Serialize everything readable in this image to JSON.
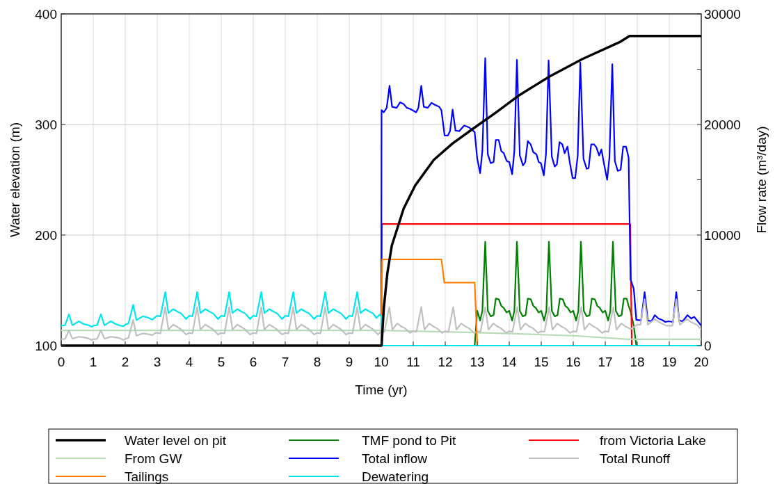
{
  "chart_data": {
    "type": "line",
    "xlabel": "Time (yr)",
    "ylabel": "Water elevation (m)",
    "y2label": "Flow rate (m³/day)",
    "xlim": [
      0,
      20
    ],
    "xticks": [
      0,
      1,
      2,
      3,
      4,
      5,
      6,
      7,
      8,
      9,
      10,
      11,
      12,
      13,
      14,
      15,
      16,
      17,
      18,
      19,
      20
    ],
    "ylim": [
      100,
      400
    ],
    "yticks": [
      100,
      200,
      300,
      400
    ],
    "y2lim": [
      0,
      30000
    ],
    "y2ticks": [
      0,
      {
        "value": 5000,
        "label": null
      },
      10000,
      {
        "value": 15000,
        "label": null
      },
      20000,
      {
        "value": 25000,
        "label": null
      },
      30000
    ],
    "grid": true,
    "legend": "bottom",
    "series": [
      {
        "name": "Water level on pit",
        "color": "#000000",
        "x": [
          0,
          10.01,
          10.08,
          10.19,
          10.33,
          10.7,
          11.06,
          11.64,
          12.22,
          12.87,
          13.59,
          14.32,
          15.26,
          16.28,
          17.47,
          17.76,
          20
        ],
        "values": [
          100,
          100,
          133.8,
          165.2,
          190.4,
          223.9,
          244.8,
          267.9,
          282.6,
          296.2,
          310.9,
          326.6,
          343.4,
          359.1,
          374.8,
          380,
          380
        ]
      },
      {
        "name": "TMF pond to Pit",
        "color": "#008000",
        "axis": "y2",
        "x": [
          0,
          12.92,
          13.0,
          13.09,
          13.16,
          13.25,
          13.33,
          13.42,
          13.51,
          13.58,
          13.67,
          13.75,
          13.83,
          13.92,
          14.0,
          14.09,
          14.16,
          14.24,
          14.33,
          14.42,
          14.51,
          14.58,
          14.67,
          14.75,
          14.83,
          14.92,
          15.0,
          15.09,
          15.16,
          15.24,
          15.33,
          15.42,
          15.51,
          15.58,
          15.67,
          15.75,
          15.83,
          15.92,
          16.0,
          16.09,
          16.16,
          16.24,
          16.33,
          16.42,
          16.51,
          16.58,
          16.67,
          16.75,
          16.83,
          16.92,
          17.0,
          17.09,
          17.16,
          17.24,
          17.33,
          17.42,
          17.51,
          17.58,
          17.67,
          17.73,
          17.8,
          17.89,
          17.97,
          20
        ],
        "values": [
          0,
          0,
          3150,
          2270,
          3150,
          9400,
          3150,
          2650,
          2750,
          4250,
          4200,
          3600,
          3400,
          3000,
          3150,
          2270,
          3150,
          9400,
          3150,
          2650,
          2750,
          4250,
          4200,
          3600,
          3400,
          3000,
          3150,
          2270,
          3150,
          9400,
          3150,
          2650,
          2750,
          4250,
          4200,
          3600,
          3400,
          3000,
          3150,
          2270,
          3150,
          9400,
          3150,
          2650,
          2750,
          4250,
          4200,
          3600,
          3400,
          3000,
          3150,
          2270,
          3150,
          9400,
          3150,
          2650,
          2750,
          4250,
          4250,
          3600,
          3000,
          1800,
          0,
          0
        ]
      },
      {
        "name": "from Victoria Lake",
        "color": "#ff0000",
        "axis": "y2",
        "x": [
          10.0,
          10.02,
          17.78,
          17.83
        ],
        "values": [
          0,
          11000,
          11000,
          0
        ]
      },
      {
        "name": "From GW",
        "color": "#b8dcb8",
        "axis": "y2",
        "x": [
          0,
          10,
          12.9,
          14.5,
          16.1,
          17.7,
          20
        ],
        "values": [
          1380,
          1380,
          1190,
          1050,
          880,
          570,
          570
        ]
      },
      {
        "name": "Total inflow",
        "color": "#0000ff",
        "axis": "y2",
        "x": [
          10.0,
          10.01,
          10.08,
          10.17,
          10.26,
          10.34,
          10.48,
          10.59,
          10.7,
          10.8,
          10.91,
          11.09,
          11.16,
          11.25,
          11.33,
          11.45,
          11.57,
          11.7,
          11.81,
          11.88,
          11.98,
          12.08,
          12.15,
          12.23,
          12.32,
          12.44,
          12.59,
          12.73,
          12.85,
          12.92,
          13.0,
          13.09,
          13.16,
          13.25,
          13.33,
          13.42,
          13.51,
          13.58,
          13.67,
          13.75,
          13.83,
          13.92,
          14.0,
          14.09,
          14.16,
          14.24,
          14.33,
          14.43,
          14.5,
          14.58,
          14.67,
          14.75,
          14.85,
          14.92,
          14.99,
          15.08,
          15.15,
          15.23,
          15.33,
          15.42,
          15.49,
          15.57,
          15.66,
          15.73,
          15.82,
          15.89,
          15.98,
          16.06,
          16.14,
          16.22,
          16.32,
          16.42,
          16.48,
          16.56,
          16.65,
          16.72,
          16.81,
          16.88,
          16.97,
          17.06,
          17.13,
          17.22,
          17.3,
          17.39,
          17.48,
          17.56,
          17.65,
          17.73,
          17.79,
          17.89,
          17.97,
          18.12,
          18.23,
          18.33,
          18.44,
          18.55,
          18.66,
          18.77,
          18.88,
          18.97,
          19.12,
          19.22,
          19.31,
          19.42,
          19.57,
          19.69,
          19.78,
          19.89,
          20
        ],
        "values": [
          2650,
          21300,
          21100,
          21500,
          23500,
          21600,
          21500,
          22000,
          21850,
          21500,
          21400,
          21100,
          21500,
          23500,
          21600,
          21500,
          21950,
          21750,
          21600,
          21300,
          19000,
          19000,
          19400,
          21350,
          19450,
          19400,
          19900,
          19750,
          19500,
          19300,
          16900,
          15600,
          17600,
          26000,
          17300,
          16500,
          16600,
          18600,
          18600,
          17600,
          17400,
          16700,
          16600,
          15500,
          17600,
          25850,
          17200,
          16300,
          16600,
          18500,
          18200,
          17500,
          17300,
          16600,
          16500,
          15400,
          17400,
          25800,
          17100,
          16200,
          16400,
          18400,
          18200,
          17400,
          18000,
          16600,
          15150,
          15150,
          17200,
          25600,
          16900,
          16000,
          16050,
          18200,
          18200,
          17950,
          17200,
          17750,
          16300,
          15000,
          17000,
          25450,
          16700,
          15800,
          15900,
          18000,
          18000,
          17000,
          6000,
          5150,
          2330,
          2270,
          4840,
          2270,
          2200,
          2750,
          2450,
          2330,
          2140,
          2200,
          2140,
          4840,
          2270,
          2200,
          2750,
          2450,
          2600,
          2200,
          1800
        ]
      },
      {
        "name": "Total Runoff",
        "color": "#c0c0c0",
        "axis": "y2",
        "x": [
          0,
          0.12,
          0.24,
          0.35,
          0.55,
          0.7,
          0.85,
          0.95,
          1,
          1.12,
          1.24,
          1.35,
          1.55,
          1.7,
          1.85,
          1.95,
          2,
          2.1,
          2.25,
          2.35,
          2.55,
          2.7,
          2.85,
          2.95,
          3,
          3.1,
          3.25,
          3.35,
          3.5,
          3.62,
          3.75,
          3.9,
          4,
          4.1,
          4.25,
          4.35,
          4.5,
          4.62,
          4.75,
          4.9,
          5,
          5.1,
          5.25,
          5.35,
          5.5,
          5.62,
          5.75,
          5.9,
          6,
          6.1,
          6.25,
          6.35,
          6.5,
          6.62,
          6.75,
          6.9,
          7,
          7.1,
          7.25,
          7.35,
          7.5,
          7.62,
          7.75,
          7.9,
          8,
          8.1,
          8.25,
          8.35,
          8.5,
          8.62,
          8.75,
          8.9,
          9,
          9.1,
          9.25,
          9.35,
          9.5,
          9.62,
          9.75,
          9.9,
          10,
          10.1,
          10.25,
          10.35,
          10.5,
          10.62,
          10.75,
          10.9,
          11,
          11.1,
          11.25,
          11.35,
          11.5,
          11.62,
          11.75,
          11.9,
          12,
          12.1,
          12.25,
          12.35,
          12.5,
          12.62,
          12.75,
          12.9,
          13,
          13.1,
          13.25,
          13.35,
          13.5,
          13.62,
          13.75,
          13.9,
          14,
          14.1,
          14.25,
          14.35,
          14.5,
          14.62,
          14.75,
          14.9,
          15,
          15.1,
          15.25,
          15.35,
          15.5,
          15.62,
          15.75,
          15.9,
          16,
          16.1,
          16.25,
          16.35,
          16.5,
          16.62,
          16.75,
          16.9,
          17,
          17.1,
          17.25,
          17.35,
          17.5,
          17.62,
          17.8,
          18,
          18.1,
          18.23,
          18.33,
          18.55,
          18.7,
          18.9,
          19.1,
          19.22,
          19.33,
          19.55,
          19.7,
          19.85,
          20
        ],
        "values": [
          570,
          600,
          1380,
          620,
          800,
          750,
          650,
          500,
          570,
          600,
          1380,
          620,
          800,
          750,
          650,
          500,
          600,
          700,
          2330,
          900,
          1100,
          1050,
          950,
          1150,
          1150,
          1100,
          3480,
          1450,
          1900,
          1700,
          1450,
          1000,
          1150,
          1100,
          3480,
          1450,
          1900,
          1700,
          1450,
          1000,
          1150,
          1100,
          3480,
          1450,
          1900,
          1700,
          1450,
          1000,
          1150,
          1100,
          3480,
          1450,
          1900,
          1700,
          1450,
          1000,
          1150,
          1100,
          3480,
          1450,
          1900,
          1700,
          1450,
          1000,
          1150,
          1100,
          3480,
          1450,
          1900,
          1700,
          1450,
          1000,
          1150,
          1100,
          3480,
          1450,
          1900,
          1700,
          1450,
          1000,
          1300,
          1250,
          3480,
          1450,
          2000,
          1750,
          1550,
          1150,
          1300,
          1250,
          3480,
          1450,
          2000,
          1750,
          1550,
          1150,
          1300,
          1250,
          3480,
          1450,
          2000,
          1750,
          1550,
          1150,
          1300,
          1250,
          3480,
          1450,
          2000,
          1750,
          1550,
          1150,
          1300,
          1250,
          3480,
          1450,
          2000,
          1750,
          1550,
          1150,
          1300,
          1250,
          3480,
          1450,
          2000,
          1750,
          1550,
          1150,
          1300,
          1250,
          3480,
          1450,
          2000,
          1750,
          1550,
          1150,
          1300,
          1250,
          3480,
          1450,
          2000,
          1750,
          1500,
          1900,
          1900,
          4200,
          1900,
          2400,
          2100,
          1800,
          1800,
          4200,
          1900,
          2400,
          2100,
          1900,
          1500
        ]
      },
      {
        "name": "Tailings",
        "color": "#ff8000",
        "axis": "y2",
        "x": [
          10.0,
          10.03,
          11.88,
          11.97,
          12.92,
          13.0
        ],
        "values": [
          0,
          7800,
          7800,
          5700,
          5700,
          0
        ]
      },
      {
        "name": "Dewatering",
        "color": "#00e5ee",
        "axis": "y2",
        "x": [
          0,
          0.12,
          0.24,
          0.35,
          0.55,
          0.7,
          0.85,
          0.95,
          1,
          1.12,
          1.24,
          1.35,
          1.55,
          1.7,
          1.85,
          1.95,
          2,
          2.1,
          2.25,
          2.35,
          2.55,
          2.7,
          2.85,
          2.95,
          3,
          3.1,
          3.25,
          3.35,
          3.5,
          3.62,
          3.75,
          3.9,
          4,
          4.1,
          4.25,
          4.35,
          4.5,
          4.62,
          4.75,
          4.9,
          5,
          5.1,
          5.25,
          5.35,
          5.5,
          5.62,
          5.75,
          5.9,
          6,
          6.1,
          6.25,
          6.35,
          6.5,
          6.62,
          6.75,
          6.9,
          7,
          7.1,
          7.25,
          7.35,
          7.5,
          7.62,
          7.75,
          7.9,
          8,
          8.1,
          8.25,
          8.35,
          8.5,
          8.62,
          8.75,
          8.9,
          9,
          9.1,
          9.25,
          9.35,
          9.5,
          9.62,
          9.75,
          9.85,
          9.95,
          10.0,
          10.03,
          20
        ],
        "values": [
          1800,
          1850,
          2830,
          1850,
          2200,
          1950,
          1850,
          1700,
          1800,
          1850,
          2830,
          1850,
          2200,
          1950,
          1800,
          1750,
          1900,
          2000,
          3690,
          2300,
          2650,
          2550,
          2350,
          2600,
          2700,
          2650,
          4850,
          2950,
          3300,
          3100,
          2900,
          2400,
          2700,
          2650,
          4850,
          2950,
          3300,
          3100,
          2900,
          2400,
          2700,
          2650,
          4850,
          2950,
          3300,
          3100,
          2900,
          2400,
          2700,
          2650,
          4850,
          2950,
          3300,
          3100,
          2900,
          2400,
          2700,
          2650,
          4850,
          2950,
          3300,
          3100,
          2900,
          2400,
          2700,
          2650,
          4850,
          2950,
          3300,
          3100,
          2900,
          2400,
          2700,
          2650,
          4850,
          2950,
          3300,
          3100,
          2900,
          2500,
          2800,
          2650,
          0,
          0
        ]
      }
    ]
  }
}
